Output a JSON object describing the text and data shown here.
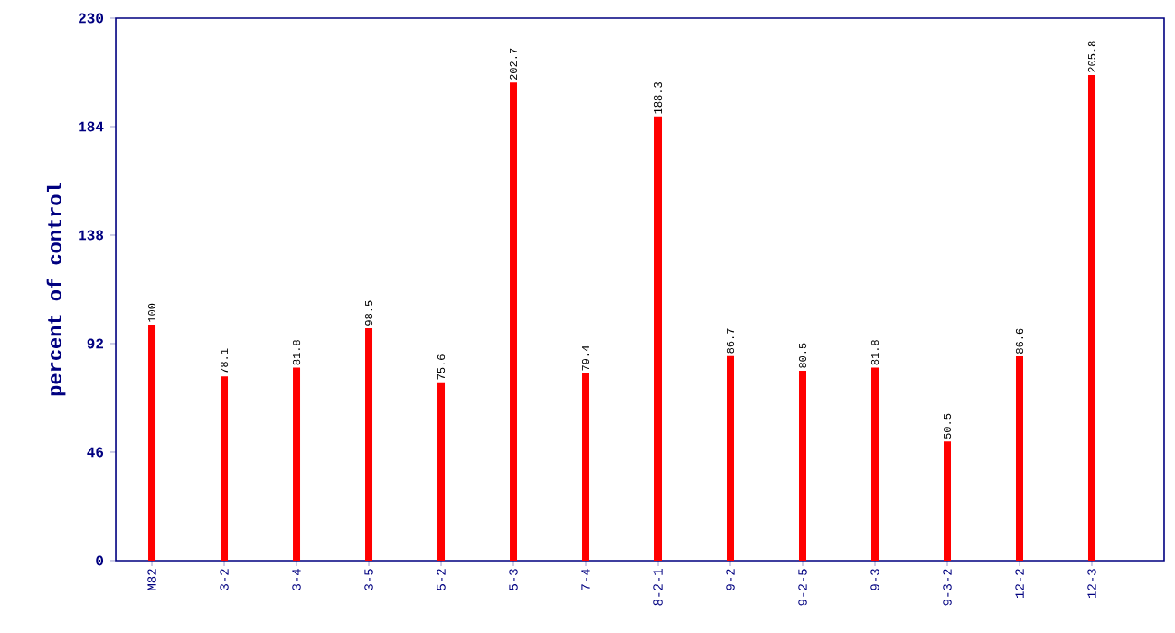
{
  "chart_data": {
    "type": "bar",
    "ylabel": "percent of control",
    "categories": [
      "M82",
      "3-2",
      "3-4",
      "3-5",
      "5-2",
      "5-3",
      "7-4",
      "8-2-1",
      "9-2",
      "9-2-5",
      "9-3",
      "9-3-2",
      "12-2",
      "12-3"
    ],
    "values": [
      100,
      78.1,
      81.8,
      98.5,
      75.6,
      202.7,
      79.4,
      188.3,
      86.7,
      80.5,
      81.8,
      50.5,
      86.6,
      205.8
    ],
    "color": "#ff0000",
    "ylim": [
      0,
      230
    ],
    "yticks": [
      0,
      46,
      92,
      138,
      184,
      230
    ],
    "data_labels": true,
    "grid": false
  }
}
